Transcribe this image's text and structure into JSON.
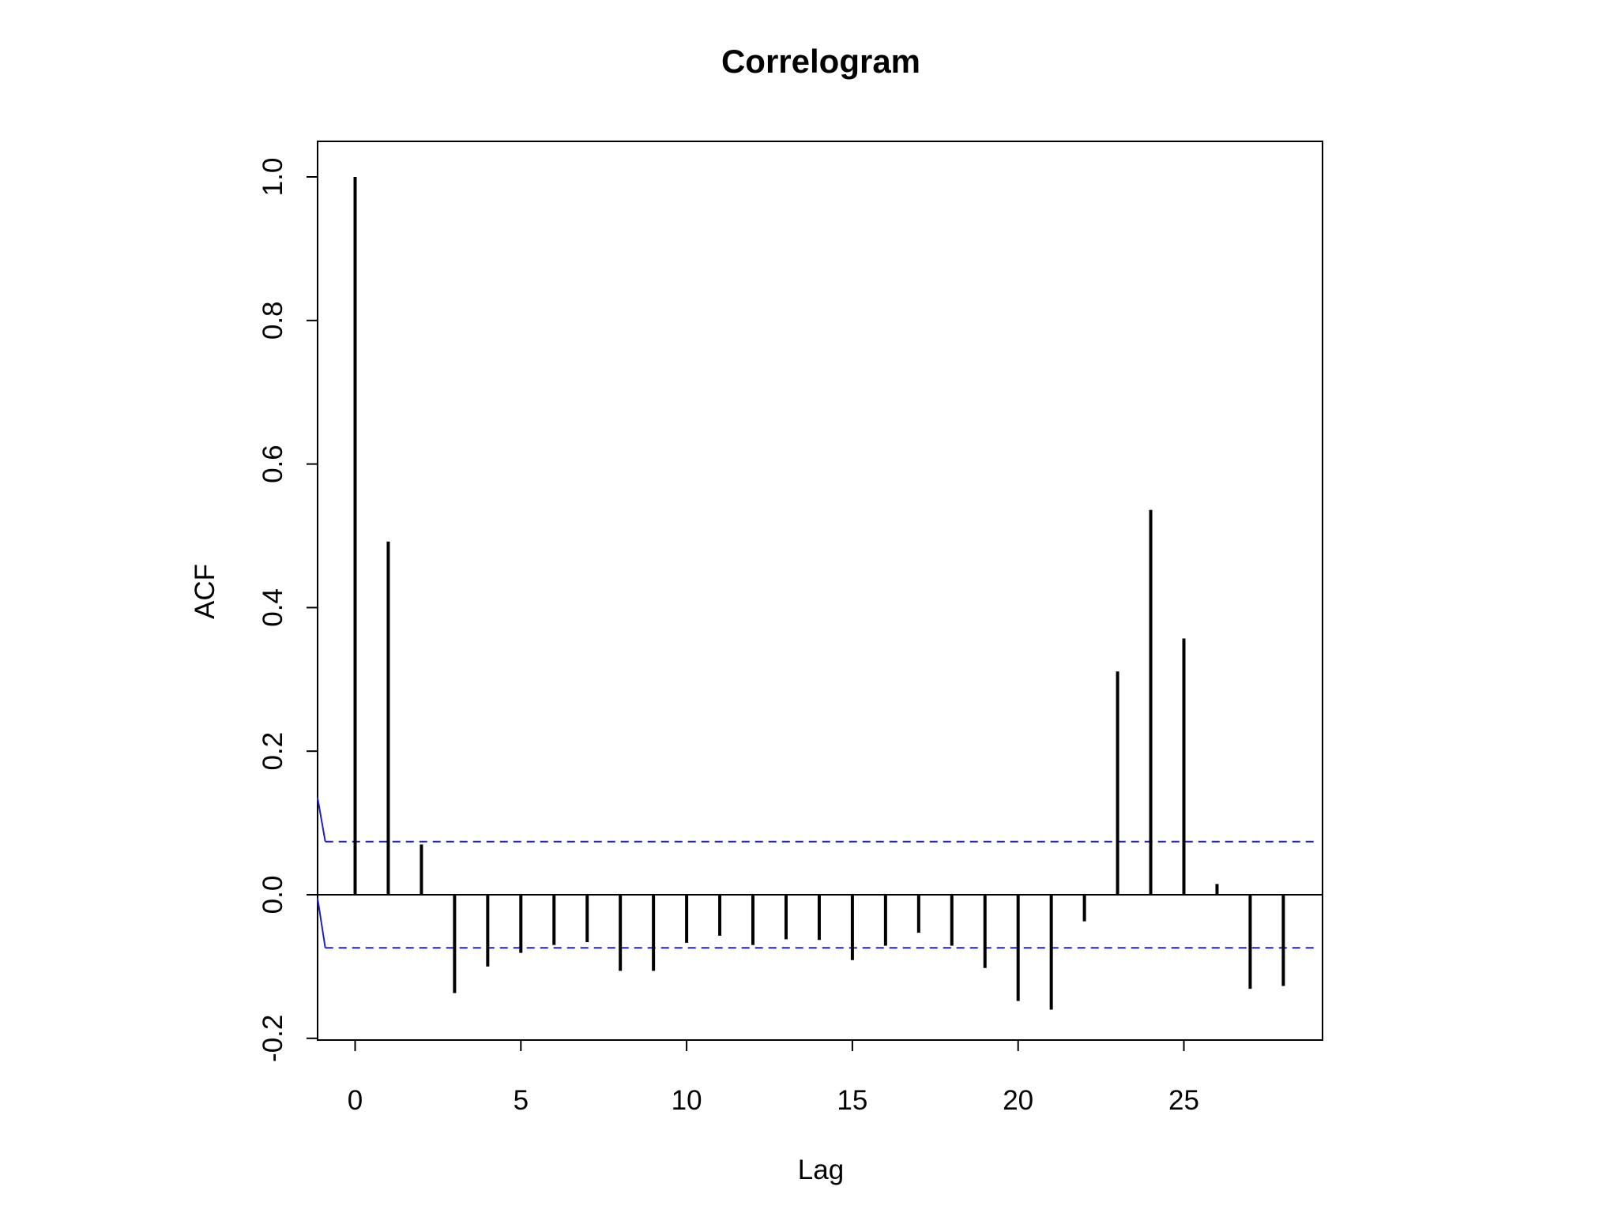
{
  "chart_data": {
    "type": "bar",
    "subtype": "correlogram",
    "title": "Correlogram",
    "xlabel": "Lag",
    "ylabel": "ACF",
    "xlim": [
      -1.2,
      29.0
    ],
    "ylim": [
      -0.2,
      1.0
    ],
    "xticks": [
      0,
      5,
      10,
      15,
      20,
      25
    ],
    "yticks": [
      -0.2,
      0.0,
      0.2,
      0.4,
      0.6,
      0.8,
      1.0
    ],
    "xtick_labels": [
      "0",
      "5",
      "10",
      "15",
      "20",
      "25"
    ],
    "ytick_labels": [
      "-0.2",
      "0.0",
      "0.2",
      "0.4",
      "0.6",
      "0.8",
      "1.0"
    ],
    "lags": [
      0,
      1,
      2,
      3,
      4,
      5,
      6,
      7,
      8,
      9,
      10,
      11,
      12,
      13,
      14,
      15,
      16,
      17,
      18,
      19,
      20,
      21,
      22,
      23,
      24,
      25,
      26,
      27,
      28
    ],
    "values": [
      1.0,
      0.492,
      0.07,
      -0.137,
      -0.1,
      -0.081,
      -0.07,
      -0.066,
      -0.106,
      -0.106,
      -0.067,
      -0.057,
      -0.07,
      -0.062,
      -0.063,
      -0.091,
      -0.071,
      -0.053,
      -0.071,
      -0.102,
      -0.148,
      -0.16,
      -0.037,
      0.311,
      0.536,
      0.357,
      0.015,
      -0.131,
      -0.127
    ],
    "confidence_bound": 0.074,
    "confidence_line_start": {
      "x": [
        -1.2,
        -0.9
      ],
      "upper": [
        0.135,
        0.074
      ],
      "lower": [
        -0.005,
        -0.074
      ]
    },
    "grid": false,
    "colors": {
      "bars": "#000000",
      "confidence": "#2020c8",
      "zero_line": "#000000"
    }
  }
}
